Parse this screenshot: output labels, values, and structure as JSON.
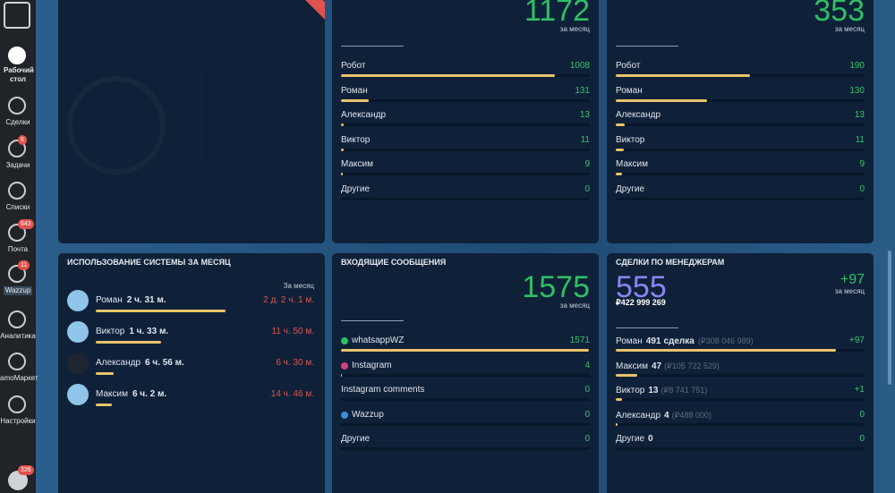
{
  "sidebar": {
    "items": [
      {
        "label": "Рабочий стол"
      },
      {
        "label": "Сделки"
      },
      {
        "label": "Задачи",
        "badge": 6
      },
      {
        "label": "Списки"
      },
      {
        "label": "Почта",
        "badge": 643
      },
      {
        "label": "Wazzup",
        "badge": 11
      },
      {
        "label": "Аналитика"
      },
      {
        "label": "amoМаркет"
      },
      {
        "label": "Настройки"
      }
    ],
    "chat_badge": 326
  },
  "widgets": [
    {
      "total": 1172,
      "period": "за месяц",
      "rows": [
        {
          "name": "Робот",
          "value": 1008
        },
        {
          "name": "Роман",
          "value": 131
        },
        {
          "name": "Александр",
          "value": 13
        },
        {
          "name": "Виктор",
          "value": 11
        },
        {
          "name": "Максим",
          "value": 9
        },
        {
          "name": "Другие",
          "value": 0
        }
      ]
    },
    {
      "total": 353,
      "period": "за месяц",
      "rows": [
        {
          "name": "Робот",
          "value": 190
        },
        {
          "name": "Роман",
          "value": 130
        },
        {
          "name": "Александр",
          "value": 13
        },
        {
          "name": "Виктор",
          "value": 11
        },
        {
          "name": "Максим",
          "value": 9
        },
        {
          "name": "Другие",
          "value": 0
        }
      ]
    },
    {
      "title": "ИСПОЛЬЗОВАНИЕ СИСТЕМЫ ЗА МЕСЯЦ",
      "period": "За месяц",
      "rows": [
        {
          "name": "Роман",
          "time": "2 ч. 31 м.",
          "period_time": "2 д. 2 ч. 1 м."
        },
        {
          "name": "Виктор",
          "time": "1 ч. 33 м.",
          "period_time": "11 ч. 50 м."
        },
        {
          "name": "Александр",
          "time": "6 ч. 56 м.",
          "period_time": "6 ч. 30 м."
        },
        {
          "name": "Максим",
          "time": "6 ч. 2 м.",
          "period_time": "14 ч. 46 м."
        }
      ]
    },
    {
      "title": "ВХОДЯЩИЕ СООБЩЕНИЯ",
      "total": 1575,
      "period": "за месяц",
      "rows": [
        {
          "name": "whatsappWZ",
          "value": 1571
        },
        {
          "name": "Instagram",
          "value": 4
        },
        {
          "name": "Instagram comments",
          "value": 0
        },
        {
          "name": "Wazzup",
          "value": 0
        },
        {
          "name": "Другие",
          "value": 0
        }
      ]
    },
    {
      "title": "СДЕЛКИ ПО МЕНЕДЖЕРАМ",
      "total": 555,
      "amount": "₽422 999 269",
      "delta": "+97",
      "period": "за месяц",
      "rows": [
        {
          "name": "Роман",
          "count": 491,
          "count_suffix": "сделка",
          "amount": "(₽308 046 989)",
          "delta": "+97"
        },
        {
          "name": "Максим",
          "count": 47,
          "amount": "(₽105 722 529)"
        },
        {
          "name": "Виктор",
          "count": 13,
          "amount": "(₽8 741 751)",
          "delta": "+1"
        },
        {
          "name": "Александр",
          "count": 4,
          "amount": "(₽488 000)",
          "delta": "0"
        },
        {
          "name": "Другие",
          "count": 0,
          "delta": "0"
        }
      ]
    }
  ]
}
